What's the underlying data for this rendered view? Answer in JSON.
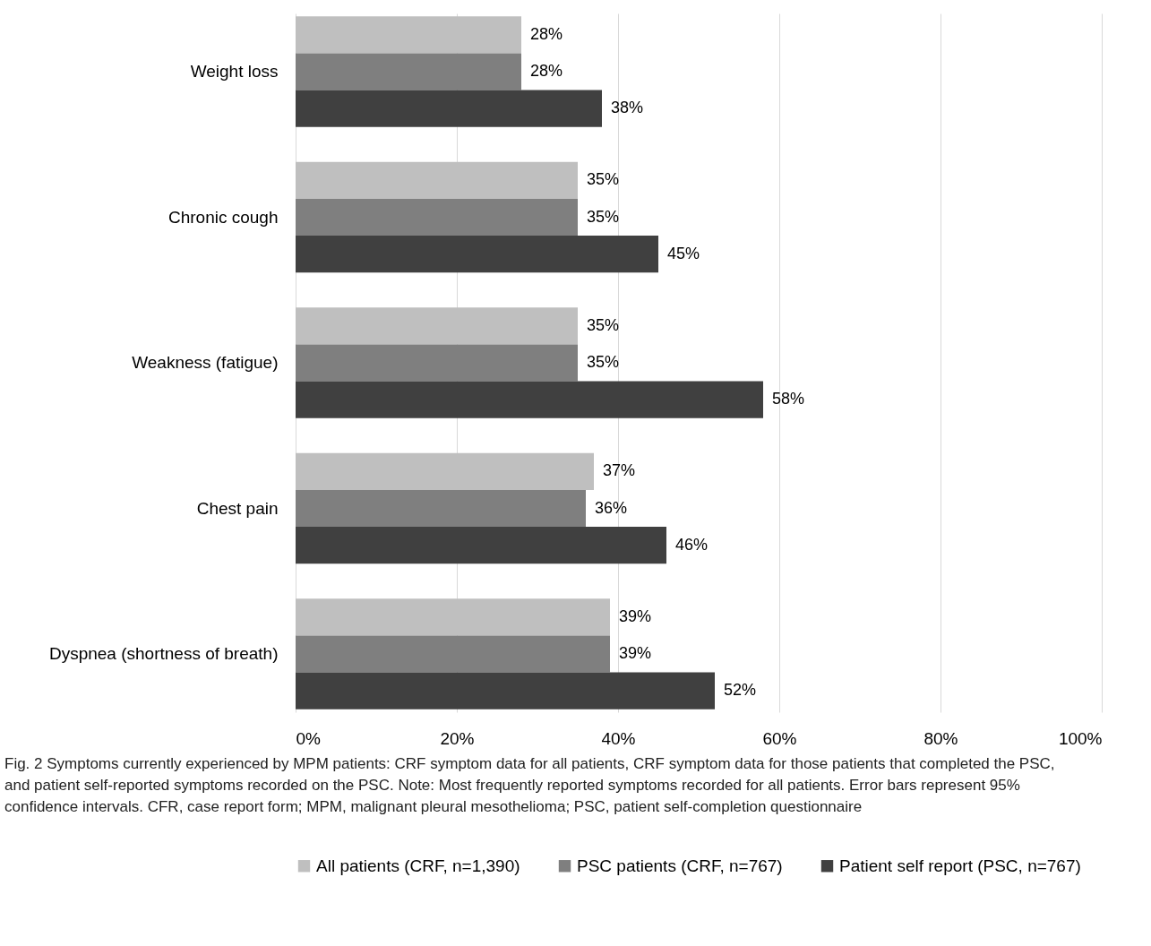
{
  "chart_data": {
    "type": "bar",
    "orientation": "horizontal",
    "categories": [
      "Weight loss",
      "Chronic cough",
      "Weakness (fatigue)",
      "Chest pain",
      "Dyspnea (shortness of breath)"
    ],
    "series": [
      {
        "name": "All patients (CRF, n=1,390)",
        "color": "#bfbfbf",
        "values": [
          28,
          35,
          35,
          37,
          39
        ],
        "value_labels": [
          "28%",
          "35%",
          "35%",
          "37%",
          "39%"
        ]
      },
      {
        "name": "PSC patients (CRF, n=767)",
        "color": "#7f7f7f",
        "values": [
          28,
          35,
          35,
          36,
          39
        ],
        "value_labels": [
          "28%",
          "35%",
          "35%",
          "36%",
          "39%"
        ]
      },
      {
        "name": "Patient self report (PSC, n=767)",
        "color": "#404040",
        "values": [
          38,
          45,
          58,
          46,
          52
        ],
        "value_labels": [
          "38%",
          "45%",
          "58%",
          "46%",
          "52%"
        ]
      }
    ],
    "xlim": [
      0,
      100
    ],
    "xticks": [
      {
        "value": 0,
        "label": "0%"
      },
      {
        "value": 20,
        "label": "20%"
      },
      {
        "value": 40,
        "label": "40%"
      },
      {
        "value": 60,
        "label": "60%"
      },
      {
        "value": 80,
        "label": "80%"
      },
      {
        "value": 100,
        "label": "100%"
      }
    ],
    "grid": "x",
    "legend": "bottom",
    "annotations": [
      "Fig. 2 Symptoms currently experienced by MPM patients: CRF symptom data for all patients, CRF symptom data for those patients that completed the PSC, and patient self-reported symptoms recorded on the PSC. Note: Most frequently reported symptoms recorded for all patients. Error bars represent 95% confidence intervals. CFR, case report form; MPM, malignant pleural mesothelioma; PSC, patient self-completion questionnaire"
    ]
  }
}
